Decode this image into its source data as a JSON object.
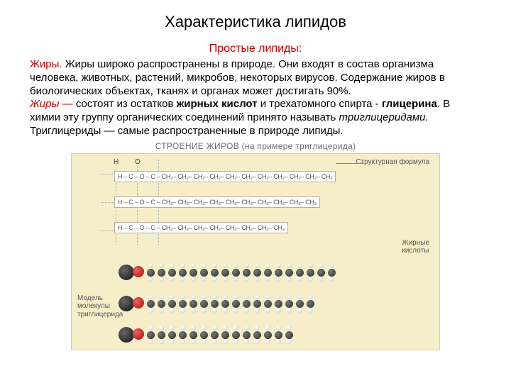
{
  "title": "Характеристика липидов",
  "subtitle": "Простые липиды:",
  "para1_lead": "Жиры. ",
  "para1_rest": "Жиры широко распространены в природе. Они входят в состав организма человека, животных, растений, микробов, некоторых вирусов. Содержание жиров в биологических объектах, тканях и органах может достигать 90%.",
  "para2_lead": "Жиры — ",
  "para2_a": "состоят из остатков ",
  "para2_bold1": "жирных кислот",
  "para2_b": " и трехатомного спирта - ",
  "para2_bold2": "глицерина",
  "para2_c": ". В химии эту группу органических соединений принято называть ",
  "para2_ital": "триглицеридами.",
  "para2_d": " Триглицериды — самые распространенные в природе липиды.",
  "diagram": {
    "title": "СТРОЕНИЕ ЖИРОВ (на примере триглицерида)",
    "top_atoms": [
      "H",
      "O",
      "O",
      "O"
    ],
    "formula1": "H – C – O – C – CH₂– CH₂– CH₂– CH₂– CH₂– CH₂– CH₂– CH₂– CH₂– CH₂– CH₃",
    "formula2": "H – C – O – C – CH₂– CH₂– CH₂– CH₂– CH₂– CH₂– CH₂– CH₂– CH₂– CH₃",
    "formula3": "H – C – O – C – CH₂– CH₂– CH₂– CH₂– CH₂– CH₂– CH₂– CH₃",
    "label_struct": "Структурная формула",
    "label_acids": "Жирные\nкислоты",
    "label_model": "Модель молекулы триглицерида",
    "chain_lengths": [
      18,
      16,
      14
    ],
    "colors": {
      "bg": "#f5eec8",
      "grid": "#9aa6b8",
      "box_bg": "#ffffff",
      "carbon": "#2a2a2a",
      "hydrogen": "#c8c8c8",
      "oxygen": "#a01010"
    }
  }
}
